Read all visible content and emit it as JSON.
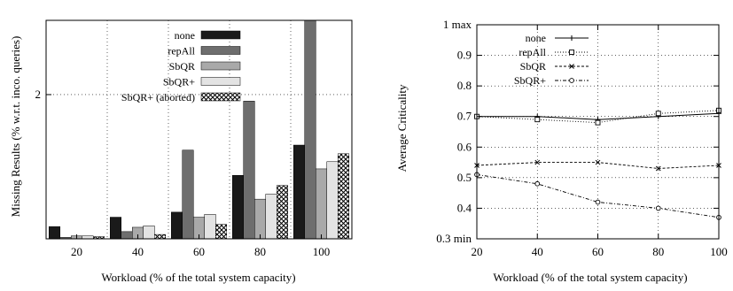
{
  "chart_data": [
    {
      "type": "bar",
      "title": "",
      "xlabel": "Workload (% of the total system capacity)",
      "ylabel": "Missing Results (% w.r.t. inco. queries)",
      "categories": [
        "20",
        "40",
        "60",
        "80",
        "100"
      ],
      "y_tick_labels": [
        "2"
      ],
      "ylim": [
        0,
        3.03
      ],
      "grid": true,
      "legend_position": "top-right",
      "series": [
        {
          "name": "none",
          "color": "#1a1a1a",
          "pattern": "solid",
          "values": [
            0.17,
            0.3,
            0.37,
            0.88,
            1.3
          ]
        },
        {
          "name": "repAll",
          "color": "#6e6e6e",
          "pattern": "solid",
          "values": [
            0.02,
            0.1,
            1.23,
            1.91,
            3.05
          ]
        },
        {
          "name": "SbQR",
          "color": "#a9a9a9",
          "pattern": "solid",
          "values": [
            0.04,
            0.16,
            0.3,
            0.55,
            0.97
          ]
        },
        {
          "name": "SbQR+",
          "color": "#e3e3e3",
          "pattern": "solid",
          "values": [
            0.04,
            0.18,
            0.34,
            0.62,
            1.07
          ]
        },
        {
          "name": "SbQR+ (aborted)",
          "color": "#ffffff",
          "pattern": "crosshatch",
          "values": [
            0.03,
            0.06,
            0.2,
            0.74,
            1.18
          ]
        }
      ]
    },
    {
      "type": "line",
      "title": "",
      "xlabel": "Workload (% of the total system capacity)",
      "ylabel": "Average Criticality",
      "x": [
        20,
        40,
        60,
        80,
        100
      ],
      "xlim": [
        20,
        100
      ],
      "ylim": [
        0.3,
        1.0
      ],
      "x_tick_labels": [
        "20",
        "40",
        "60",
        "80",
        "100"
      ],
      "y_tick_labels": [
        "0.3 min",
        "0.4",
        "0.5",
        "0.6",
        "0.7",
        "0.8",
        "0.9",
        "1 max"
      ],
      "grid": true,
      "legend_position": "top-left",
      "series": [
        {
          "name": "none",
          "marker": "plus",
          "dash": "solid",
          "values": [
            0.7,
            0.7,
            0.69,
            0.7,
            0.71
          ]
        },
        {
          "name": "repAll",
          "marker": "square",
          "dash": "dotted",
          "values": [
            0.7,
            0.69,
            0.68,
            0.71,
            0.72
          ]
        },
        {
          "name": "SbQR",
          "marker": "x",
          "dash": "dashed",
          "values": [
            0.54,
            0.55,
            0.55,
            0.53,
            0.54
          ]
        },
        {
          "name": "SbQR+",
          "marker": "circle",
          "dash": "dashdot",
          "values": [
            0.51,
            0.48,
            0.42,
            0.4,
            0.37
          ]
        }
      ]
    }
  ]
}
